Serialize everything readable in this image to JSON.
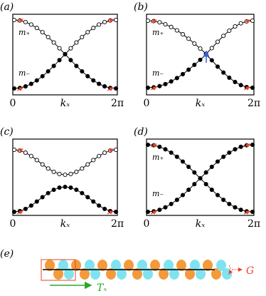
{
  "panels": [
    {
      "label": "(a)",
      "band_labels": [
        "m₊",
        "m₋"
      ],
      "axis_label": "kₓ",
      "ticks": [
        "0",
        "2π"
      ]
    },
    {
      "label": "(b)",
      "band_labels": [
        "m₊",
        "m₋"
      ],
      "axis_label": "kₓ",
      "ticks": [
        "0",
        "2π"
      ]
    },
    {
      "label": "(c)",
      "axis_label": "kₓ",
      "ticks": [
        "0",
        "2π"
      ]
    },
    {
      "label": "(d)",
      "band_labels": [
        "m₊",
        "m₋"
      ],
      "axis_label": "kₓ",
      "ticks": [
        "0",
        "2π"
      ]
    }
  ],
  "strip": {
    "label": "(e)",
    "operator": "G",
    "translation": "Tₓ"
  }
}
